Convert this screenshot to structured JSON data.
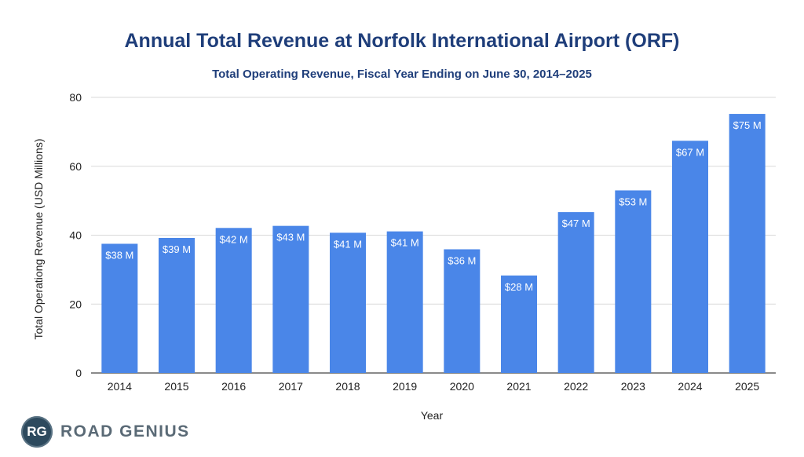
{
  "chart_data": {
    "type": "bar",
    "title": "Annual Total Revenue at Norfolk International Airport (ORF)",
    "subtitle": "Total Operating Revenue, Fiscal Year Ending on June 30, 2014–2025",
    "xlabel": "Year",
    "ylabel": "Total Operationg Revenue (USD Millions)",
    "categories": [
      "2014",
      "2015",
      "2016",
      "2017",
      "2018",
      "2019",
      "2020",
      "2021",
      "2022",
      "2023",
      "2024",
      "2025"
    ],
    "values": [
      37.5,
      39.2,
      42.1,
      42.7,
      40.7,
      41.1,
      35.9,
      28.3,
      46.7,
      53.0,
      67.4,
      75.2
    ],
    "data_labels": [
      "$38 M",
      "$39 M",
      "$42 M",
      "$43 M",
      "$41 M",
      "$41 M",
      "$36 M",
      "$28 M",
      "$47 M",
      "$53 M",
      "$67 M",
      "$75 M"
    ],
    "ylim": [
      0,
      80
    ],
    "yticks": [
      0,
      20,
      40,
      60,
      80
    ],
    "grid": true,
    "bar_color": "#4a86e8",
    "legend": "none"
  },
  "brand": {
    "badge": "RG",
    "name": "ROAD GENIUS"
  }
}
